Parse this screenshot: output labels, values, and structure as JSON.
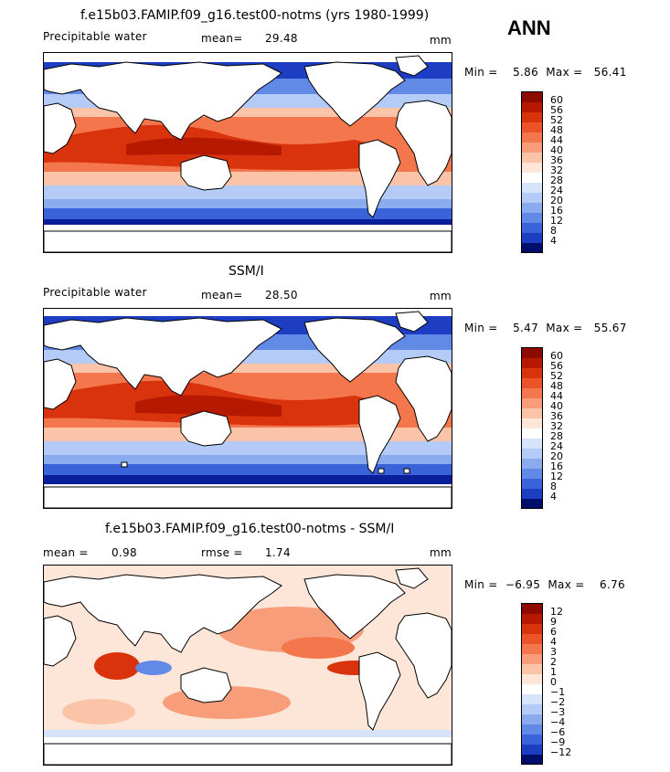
{
  "season": "ANN",
  "panels": [
    {
      "title": "f.e15b03.FAMIP.f09_g16.test00-notms (yrs 1980-1999)",
      "field_label": "Precipitable water",
      "mean_label": "mean=",
      "mean_value": "29.48",
      "units": "mm",
      "minmax_text": "Min =    5.86  Max =   56.41",
      "colorbar_ticks": [
        "60",
        "56",
        "52",
        "48",
        "44",
        "40",
        "36",
        "32",
        "28",
        "24",
        "20",
        "16",
        "12",
        "8",
        "4"
      ]
    },
    {
      "title": "SSM/I",
      "field_label": "Precipitable water",
      "mean_label": "mean=",
      "mean_value": "28.50",
      "units": "mm",
      "minmax_text": "Min =    5.47  Max =   55.67",
      "colorbar_ticks": [
        "60",
        "56",
        "52",
        "48",
        "44",
        "40",
        "36",
        "32",
        "28",
        "24",
        "20",
        "16",
        "12",
        "8",
        "4"
      ]
    },
    {
      "title": "f.e15b03.FAMIP.f09_g16.test00-notms - SSM/I",
      "mean_label": "mean =",
      "mean_value": "0.98",
      "rmse_label": "rmse =",
      "rmse_value": "1.74",
      "units": "mm",
      "minmax_text": "Min =  −6.95  Max =    6.76",
      "colorbar_ticks": [
        "12",
        "9",
        "6",
        "4",
        "3",
        "2",
        "1",
        "0",
        "−1",
        "−2",
        "−3",
        "−4",
        "−6",
        "−9",
        "−12"
      ]
    }
  ],
  "colors": {
    "field_scale": [
      "#8c0a00",
      "#b51a00",
      "#d8330c",
      "#ec5329",
      "#f4764c",
      "#f89d79",
      "#fbc4a8",
      "#fde6d8",
      "#ffffff",
      "#d6e3fb",
      "#b3cbf6",
      "#8aacef",
      "#6189e6",
      "#3b63d9",
      "#1d3ec2",
      "#0a1e9a",
      "#000e6b"
    ],
    "land": "#ffffff",
    "coast": "#000000"
  }
}
